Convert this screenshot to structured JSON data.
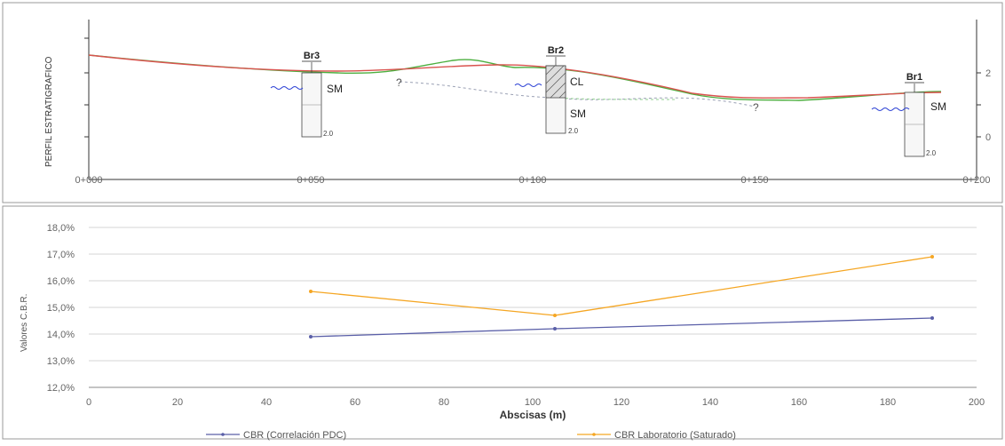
{
  "profile": {
    "title": "PERFIL ESTRATIGRAFICO",
    "x_ticks": [
      "0+000",
      "0+050",
      "0+100",
      "0+150",
      "0+200"
    ],
    "right_ticks": [
      "2",
      "0"
    ],
    "boreholes": [
      {
        "name": "Br3",
        "station": 50,
        "soils": [
          "SM"
        ],
        "depth_note": "2.0"
      },
      {
        "name": "Br2",
        "station": 105,
        "soils": [
          "CL",
          "SM"
        ],
        "depth_note": "2.0"
      },
      {
        "name": "Br1",
        "station": 185,
        "soils": [
          "SM"
        ],
        "depth_note": "2.0"
      }
    ],
    "question_marks": [
      "?",
      "?"
    ],
    "colors": {
      "terrain_red": "#d9534f",
      "terrain_green": "#4caf3f",
      "stratum_line": "#9aa0b4",
      "water": "#2a3fd4"
    }
  },
  "chart_data": {
    "type": "line",
    "xlabel": "Abscisas (m)",
    "ylabel": "Valores C.B.R.",
    "xlim": [
      0,
      200
    ],
    "ylim": [
      12,
      18
    ],
    "x_ticks": [
      "0",
      "20",
      "40",
      "60",
      "80",
      "100",
      "120",
      "140",
      "160",
      "180",
      "200"
    ],
    "y_ticks": [
      "12,0%",
      "13,0%",
      "14,0%",
      "15,0%",
      "16,0%",
      "17,0%",
      "18,0%"
    ],
    "grid": true,
    "legend_position": "bottom",
    "series": [
      {
        "name": "CBR (Correlación PDC)",
        "color": "#5a5fa8",
        "x": [
          50,
          105,
          190
        ],
        "y": [
          13.9,
          14.2,
          14.6
        ]
      },
      {
        "name": "CBR Laboratorio (Saturado)",
        "color": "#f5a623",
        "x": [
          50,
          105,
          190
        ],
        "y": [
          15.6,
          14.7,
          16.9
        ]
      }
    ]
  }
}
